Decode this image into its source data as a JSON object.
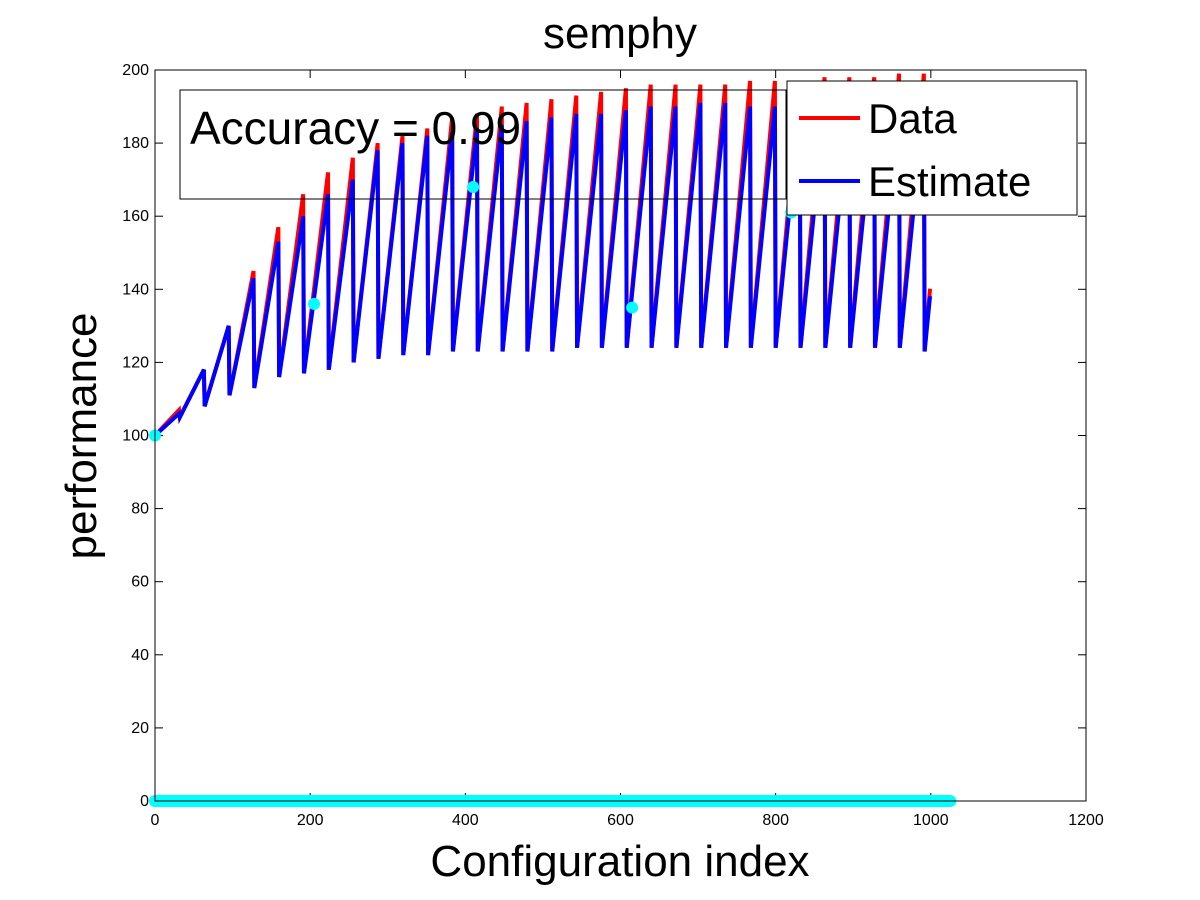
{
  "chart_data": {
    "type": "line",
    "title": "semphy",
    "xlabel": "Configuration index",
    "ylabel": "performance",
    "xlim": [
      0,
      1200
    ],
    "ylim": [
      0,
      200
    ],
    "xticks": [
      0,
      200,
      400,
      600,
      800,
      1000,
      1200
    ],
    "yticks": [
      0,
      20,
      40,
      60,
      80,
      100,
      120,
      140,
      160,
      180,
      200
    ],
    "grid": false,
    "legend_position": "top-right",
    "annotation": "Accuracy = 0.99",
    "colors": {
      "data": "#ff0000",
      "estimate": "#0000ff",
      "samples": "#00ffff"
    },
    "sawtooth": {
      "period": 32,
      "n_points": 1000,
      "start": 100,
      "peaks_data": [
        107,
        118,
        130,
        145,
        157,
        166,
        172,
        176,
        180,
        182,
        184,
        187,
        188,
        190,
        191,
        192,
        193,
        194,
        195,
        196,
        196,
        196,
        196,
        197,
        197,
        197,
        198,
        198,
        198,
        199,
        199,
        199
      ],
      "peaks_estimate": [
        106,
        118,
        130,
        143,
        153,
        160,
        166,
        170,
        178,
        180,
        182,
        183,
        184,
        185,
        186,
        187,
        188,
        188,
        189,
        190,
        190,
        191,
        191,
        190,
        190,
        190,
        190,
        190,
        190,
        190,
        190,
        190
      ],
      "troughs": [
        100,
        105,
        108,
        111,
        113,
        116,
        117,
        118,
        120,
        121,
        122,
        122,
        123,
        123,
        123,
        123,
        123,
        124,
        124,
        124,
        124,
        124,
        124,
        124,
        124,
        124,
        124,
        124,
        124,
        124,
        124,
        123
      ]
    },
    "series": [
      {
        "name": "Data"
      },
      {
        "name": "Estimate"
      }
    ],
    "samples": {
      "x": [
        0,
        205,
        410,
        615,
        820
      ],
      "y": [
        100,
        136,
        168,
        135,
        161
      ],
      "baseline_x_range": [
        0,
        1025
      ],
      "baseline_y": 0
    }
  }
}
